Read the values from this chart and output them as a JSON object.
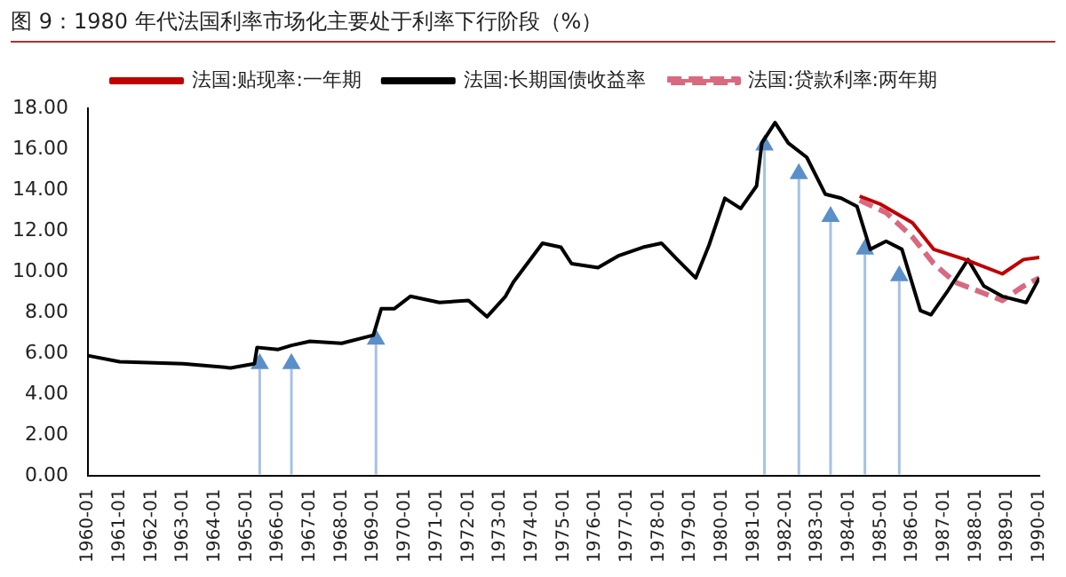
{
  "chart_data": {
    "type": "line",
    "title": "图 9：1980 年代法国利率市场化主要处于利率下行阶段（%）",
    "series": [
      {
        "name": "法国:贴现率:一年期",
        "color": "#c00000",
        "x": [
          "1984-05",
          "1985-01",
          "1986-01",
          "1986-09",
          "1987-09",
          "1988-11",
          "1989-07",
          "1990-01"
        ],
        "values": [
          13.7,
          13.3,
          12.4,
          11.1,
          10.6,
          9.9,
          10.6,
          10.7
        ]
      },
      {
        "name": "法国:长期国债收益率",
        "color": "#000000",
        "x": [
          "1960-01",
          "1961-01",
          "1963-01",
          "1964-07",
          "1965-04",
          "1965-05",
          "1966-01",
          "1966-06",
          "1967-01",
          "1968-01",
          "1969-01",
          "1969-04",
          "1969-09",
          "1970-03",
          "1971-02",
          "1972-01",
          "1972-08",
          "1973-03",
          "1973-06",
          "1974-05",
          "1974-12",
          "1975-04",
          "1976-02",
          "1976-10",
          "1977-07",
          "1978-02",
          "1978-08",
          "1979-03",
          "1979-08",
          "1980-02",
          "1980-08",
          "1981-02",
          "1981-04",
          "1981-09",
          "1982-02",
          "1982-09",
          "1983-04",
          "1983-10",
          "1984-04",
          "1984-09",
          "1985-03",
          "1985-09",
          "1986-04",
          "1986-08",
          "1987-02",
          "1987-10",
          "1988-04",
          "1988-11",
          "1989-08",
          "1990-01"
        ],
        "values": [
          5.9,
          5.6,
          5.5,
          5.3,
          5.5,
          6.3,
          6.2,
          6.4,
          6.6,
          6.5,
          6.9,
          8.2,
          8.2,
          8.8,
          8.5,
          8.6,
          7.8,
          8.8,
          9.5,
          11.4,
          11.2,
          10.4,
          10.2,
          10.8,
          11.2,
          11.4,
          10.6,
          9.7,
          11.3,
          13.6,
          13.1,
          14.2,
          16.3,
          17.3,
          16.3,
          15.6,
          13.8,
          13.6,
          13.2,
          11.1,
          11.5,
          11.1,
          8.1,
          7.9,
          9.0,
          10.6,
          9.3,
          8.8,
          8.5,
          9.7
        ]
      },
      {
        "name": "法国:贷款利率:两年期",
        "color": "#d9697f",
        "line_style": "dashed",
        "x": [
          "1984-05",
          "1985-03",
          "1986-01",
          "1986-09",
          "1987-05",
          "1988-03",
          "1988-11",
          "1989-07",
          "1990-01"
        ],
        "values": [
          13.5,
          12.9,
          11.7,
          10.4,
          9.5,
          9.0,
          8.6,
          9.3,
          9.7
        ]
      },
      {
        "type": "scatter",
        "marker": "triangle",
        "color": "#5b8fc9",
        "x": [
          "1965-06",
          "1966-06",
          "1969-02",
          "1981-05",
          "1982-06",
          "1983-06",
          "1984-07",
          "1985-08"
        ],
        "values": [
          5.5,
          5.5,
          6.7,
          16.2,
          14.8,
          12.7,
          11.1,
          9.8
        ]
      }
    ],
    "xlim": [
      "1960-01",
      "1990-01"
    ],
    "xticks": [
      "1960-01",
      "1961-01",
      "1962-01",
      "1963-01",
      "1964-01",
      "1965-01",
      "1966-01",
      "1967-01",
      "1968-01",
      "1969-01",
      "1970-01",
      "1971-01",
      "1972-01",
      "1973-01",
      "1974-01",
      "1975-01",
      "1976-01",
      "1977-01",
      "1978-01",
      "1979-01",
      "1980-01",
      "1981-01",
      "1982-01",
      "1983-01",
      "1984-01",
      "1985-01",
      "1986-01",
      "1987-01",
      "1988-01",
      "1989-01",
      "1990-01"
    ],
    "ylim": [
      0,
      18
    ],
    "yticks": [
      {
        "value": 0,
        "label": "0.00"
      },
      {
        "value": 2,
        "label": "2.00"
      },
      {
        "value": 4,
        "label": "4.00"
      },
      {
        "value": 6,
        "label": "6.00"
      },
      {
        "value": 8,
        "label": "8.00"
      },
      {
        "value": 10,
        "label": "10.00"
      },
      {
        "value": 12,
        "label": "12.00"
      },
      {
        "value": 14,
        "label": "14.00"
      },
      {
        "value": 16,
        "label": "16.00"
      },
      {
        "value": 18,
        "label": "18.00"
      }
    ],
    "ref_lines": [
      {
        "axis": "x",
        "value": "1965-06",
        "color": "#5b8fc9"
      },
      {
        "axis": "x",
        "value": "1966-06",
        "color": "#5b8fc9"
      },
      {
        "axis": "x",
        "value": "1969-02",
        "color": "#5b8fc9"
      },
      {
        "axis": "x",
        "value": "1981-05",
        "color": "#5b8fc9"
      },
      {
        "axis": "x",
        "value": "1982-06",
        "color": "#5b8fc9"
      },
      {
        "axis": "x",
        "value": "1983-06",
        "color": "#5b8fc9"
      },
      {
        "axis": "x",
        "value": "1984-07",
        "color": "#5b8fc9"
      },
      {
        "axis": "x",
        "value": "1985-08",
        "color": "#5b8fc9"
      }
    ],
    "grid": false,
    "legend": "top",
    "marker": "none"
  }
}
